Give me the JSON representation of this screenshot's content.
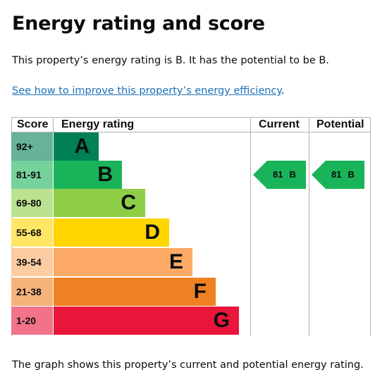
{
  "heading": "Energy rating and score",
  "summary": "This property’s energy rating is B. It has the potential to be B.",
  "improve_link": "See how to improve this property’s energy efficiency",
  "improve_suffix": ".",
  "footer": "The graph shows this property’s current and potential energy rating.",
  "table": {
    "headers": {
      "score": "Score",
      "rating": "Energy rating",
      "current": "Current",
      "potential": "Potential"
    },
    "bands": [
      {
        "score": "92+",
        "letter": "A",
        "color": "#008054",
        "score_bg": "#66b398"
      },
      {
        "score": "81-91",
        "letter": "B",
        "color": "#19b459",
        "score_bg": "#75d29b"
      },
      {
        "score": "69-80",
        "letter": "C",
        "color": "#8dce46",
        "score_bg": "#bbe290"
      },
      {
        "score": "55-68",
        "letter": "D",
        "color": "#ffd500",
        "score_bg": "#ffe666"
      },
      {
        "score": "39-54",
        "letter": "E",
        "color": "#fcaa65",
        "score_bg": "#fdcca3"
      },
      {
        "score": "21-38",
        "letter": "F",
        "color": "#ef8023",
        "score_bg": "#f5b37b"
      },
      {
        "score": "1-20",
        "letter": "G",
        "color": "#e9153b",
        "score_bg": "#f27389"
      }
    ],
    "current": {
      "score": "81",
      "letter": "B",
      "band_index": 1,
      "color": "#19b459"
    },
    "potential": {
      "score": "81",
      "letter": "B",
      "band_index": 1,
      "color": "#19b459"
    }
  }
}
